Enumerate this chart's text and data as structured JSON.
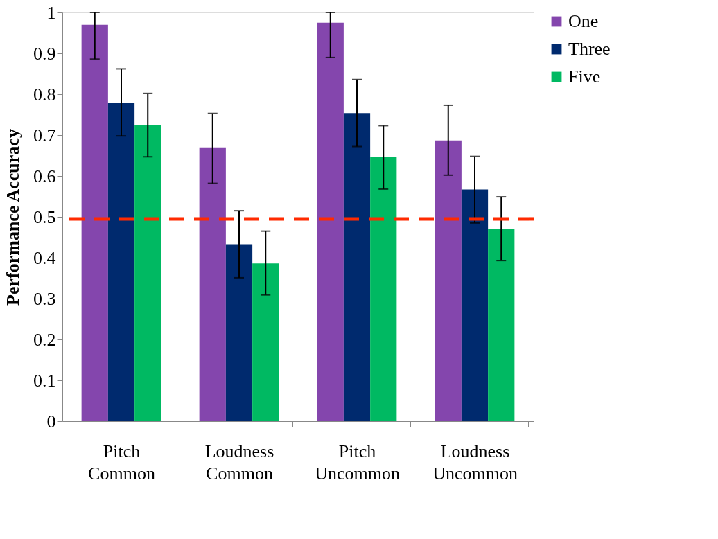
{
  "chart_data": {
    "type": "bar",
    "ylabel": "Performance Accuracy",
    "categories": [
      "Pitch Common",
      "Loudness Common",
      "Pitch Uncommon",
      "Loudness Uncommon"
    ],
    "series": [
      {
        "name": "One",
        "color": "#8446ad",
        "values": [
          0.97,
          0.67,
          0.975,
          0.687
        ],
        "errors": [
          [
            0.886,
            1.0
          ],
          [
            0.582,
            0.753
          ],
          [
            0.89,
            1.0
          ],
          [
            0.602,
            0.773
          ]
        ]
      },
      {
        "name": "Three",
        "color": "#002a6e",
        "values": [
          0.779,
          0.433,
          0.754,
          0.567
        ],
        "errors": [
          [
            0.698,
            0.862
          ],
          [
            0.351,
            0.515
          ],
          [
            0.672,
            0.836
          ],
          [
            0.485,
            0.648
          ]
        ]
      },
      {
        "name": "Five",
        "color": "#00b962",
        "values": [
          0.725,
          0.386,
          0.646,
          0.471
        ],
        "errors": [
          [
            0.647,
            0.802
          ],
          [
            0.309,
            0.465
          ],
          [
            0.568,
            0.723
          ],
          [
            0.393,
            0.549
          ]
        ]
      }
    ],
    "ylim": [
      0,
      1
    ],
    "yticks": [
      0,
      0.1,
      0.2,
      0.3,
      0.4,
      0.5,
      0.6,
      0.7,
      0.8,
      0.9,
      1
    ],
    "ref_lines": [
      {
        "axis": "y",
        "value": 0.495,
        "color": "#ff2a00",
        "line_style": "dashed"
      }
    ],
    "grid": false,
    "legend": "right"
  }
}
